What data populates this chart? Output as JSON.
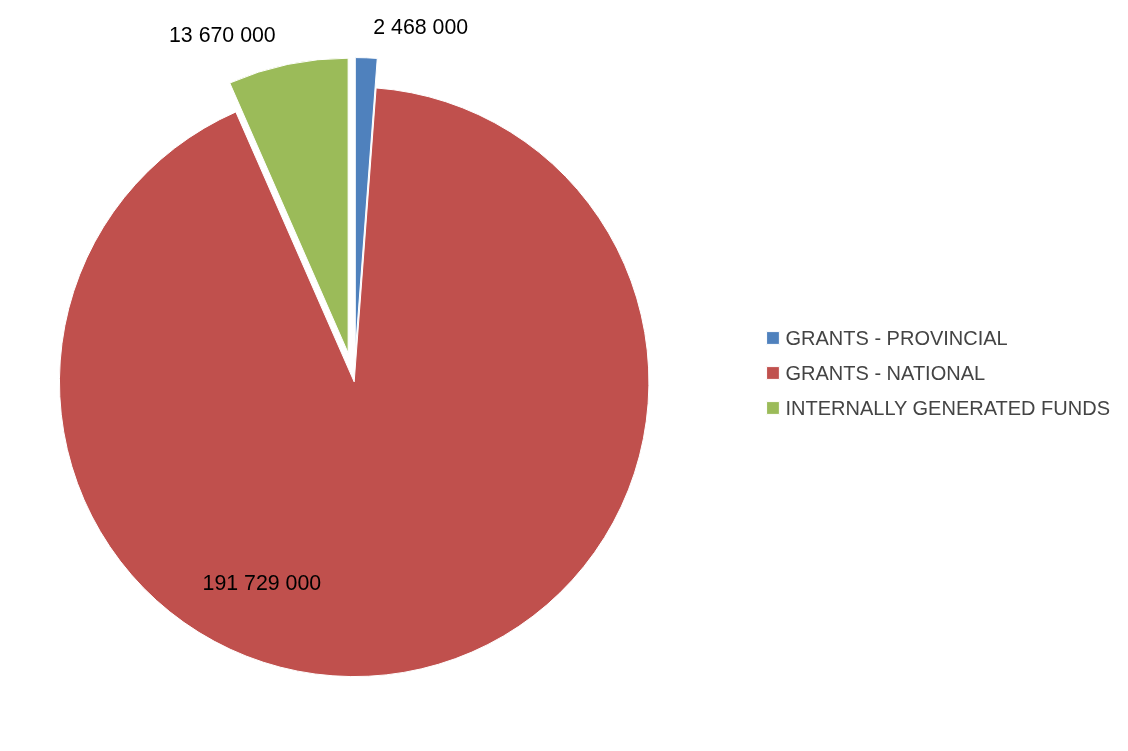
{
  "chart_data": {
    "type": "pie",
    "categories": [
      "GRANTS - PROVINCIAL",
      "GRANTS - NATIONAL",
      "INTERNALLY GENERATED FUNDS"
    ],
    "values": [
      2468000,
      191729000,
      13670000
    ],
    "colors": [
      "#4f81bd",
      "#c0504d",
      "#9bbb59"
    ],
    "data_labels": true,
    "legend": "right"
  }
}
